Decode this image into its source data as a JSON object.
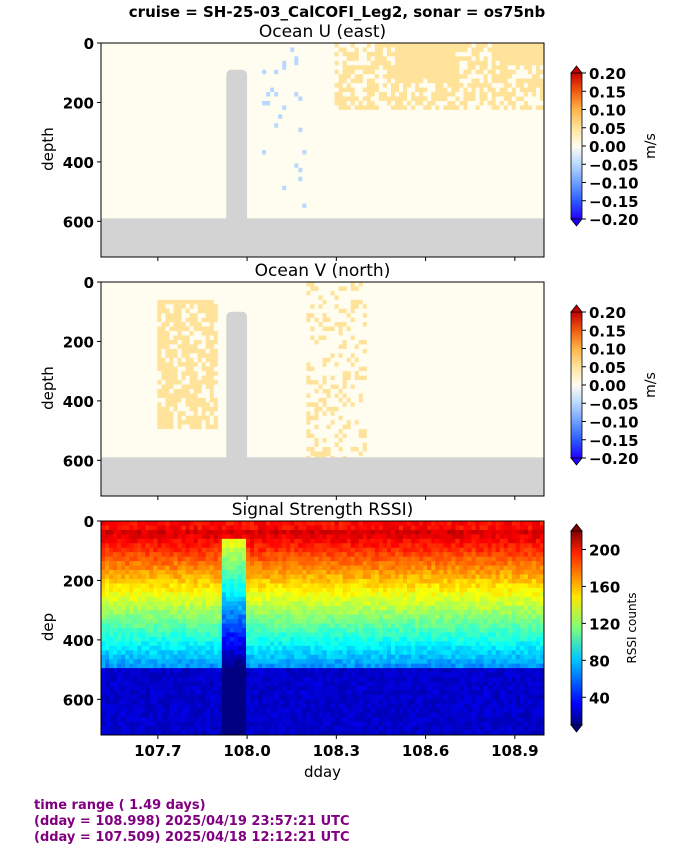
{
  "suptitle": "cruise = SH-25-03_CalCOFI_Leg2,  sonar = os75nb",
  "footer": {
    "line1": "time range ( 1.49 days)",
    "line2": "(dday = 108.998) 2025/04/19 23:57:21 UTC",
    "line3": "(dday = 107.509) 2025/04/18 12:12:21 UTC"
  },
  "colors": {
    "gap": "#d3d3d3",
    "footer_text": "#800080"
  },
  "chart_data": [
    {
      "type": "heatmap",
      "name": "u",
      "title": "Ocean U (east)",
      "ylabel": "depth",
      "xlabel": "",
      "xlim": [
        107.509,
        108.998
      ],
      "ylim": [
        720,
        0
      ],
      "yticks": [
        0,
        200,
        400,
        600
      ],
      "colorbar": {
        "label": "m/s",
        "ticks": [
          "0.20",
          "0.15",
          "0.10",
          "0.05",
          "0.00",
          "−0.05",
          "−0.10",
          "−0.15",
          "−0.20"
        ],
        "range": [
          -0.2,
          0.2
        ]
      },
      "bottom_of_data_depth": 590,
      "gap": {
        "dday": [
          107.93,
          108.0
        ],
        "top_depth": 90
      }
    },
    {
      "type": "heatmap",
      "name": "v",
      "title": "Ocean V (north)",
      "ylabel": "depth",
      "xlabel": "",
      "xlim": [
        107.509,
        108.998
      ],
      "ylim": [
        720,
        0
      ],
      "yticks": [
        0,
        200,
        400,
        600
      ],
      "colorbar": {
        "label": "m/s",
        "ticks": [
          "0.20",
          "0.15",
          "0.10",
          "0.05",
          "0.00",
          "−0.05",
          "−0.10",
          "−0.15",
          "−0.20"
        ],
        "range": [
          -0.2,
          0.2
        ]
      },
      "bottom_of_data_depth": 590,
      "gap": {
        "dday": [
          107.93,
          108.0
        ],
        "top_depth": 100
      }
    },
    {
      "type": "heatmap",
      "name": "rssi",
      "title": "Signal Strength RSSI)",
      "ylabel": "dep",
      "xlabel": "dday",
      "xlim": [
        107.509,
        108.998
      ],
      "ylim": [
        720,
        0
      ],
      "yticks": [
        0,
        200,
        400,
        600
      ],
      "xticks": [
        "107.7",
        "108.0",
        "108.3",
        "108.6",
        "108.9"
      ],
      "xtick_values": [
        107.7,
        108.0,
        108.3,
        108.6,
        108.9
      ],
      "colorbar": {
        "label": "RSSI counts",
        "ticks": [
          "200",
          "160",
          "120",
          "80",
          "40"
        ],
        "range": [
          10,
          220
        ]
      }
    }
  ]
}
